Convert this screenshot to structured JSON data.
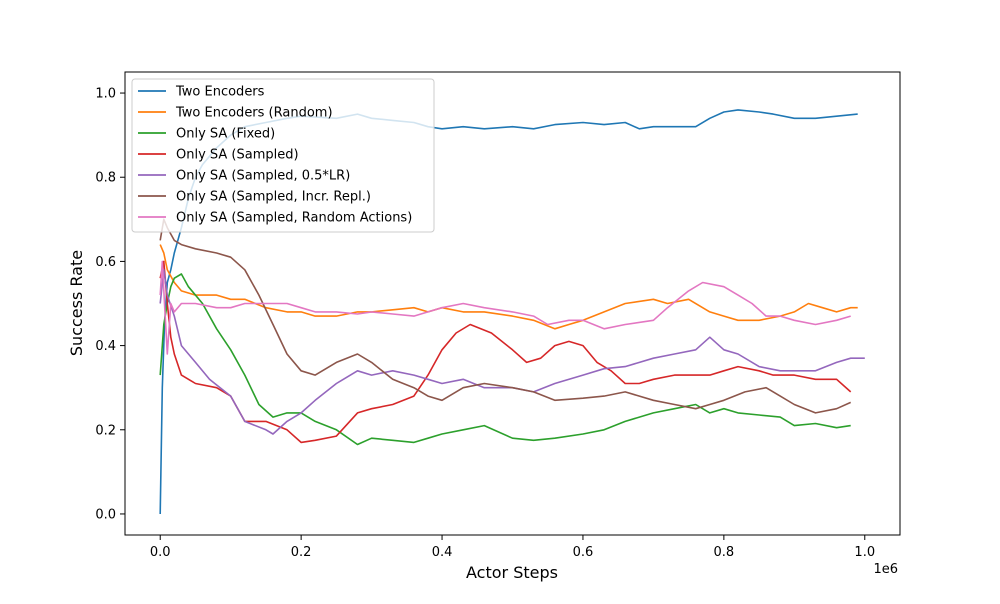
{
  "chart_data": {
    "type": "line",
    "title": "",
    "xlabel": "Actor Steps",
    "ylabel": "Success Rate",
    "x_offset_label": "1e6",
    "xlim": [
      -0.05,
      1.05
    ],
    "ylim": [
      -0.05,
      1.05
    ],
    "xticks": [
      0.0,
      0.2,
      0.4,
      0.6,
      0.8,
      1.0
    ],
    "xtick_labels": [
      "0.0",
      "0.2",
      "0.4",
      "0.6",
      "0.8",
      "1.0"
    ],
    "yticks": [
      0.0,
      0.2,
      0.4,
      0.6,
      0.8,
      1.0
    ],
    "ytick_labels": [
      "0.0",
      "0.2",
      "0.4",
      "0.6",
      "0.8",
      "1.0"
    ],
    "grid": false,
    "legend_position": "top-left",
    "series": [
      {
        "name": "Two Encoders",
        "color": "#1f77b4",
        "points": [
          [
            0.0,
            0.0
          ],
          [
            0.003,
            0.3
          ],
          [
            0.006,
            0.45
          ],
          [
            0.01,
            0.55
          ],
          [
            0.015,
            0.58
          ],
          [
            0.02,
            0.62
          ],
          [
            0.03,
            0.68
          ],
          [
            0.04,
            0.75
          ],
          [
            0.05,
            0.8
          ],
          [
            0.06,
            0.83
          ],
          [
            0.08,
            0.87
          ],
          [
            0.1,
            0.9
          ],
          [
            0.12,
            0.92
          ],
          [
            0.15,
            0.93
          ],
          [
            0.18,
            0.94
          ],
          [
            0.2,
            0.945
          ],
          [
            0.25,
            0.94
          ],
          [
            0.28,
            0.95
          ],
          [
            0.3,
            0.94
          ],
          [
            0.33,
            0.935
          ],
          [
            0.36,
            0.93
          ],
          [
            0.38,
            0.92
          ],
          [
            0.4,
            0.915
          ],
          [
            0.43,
            0.92
          ],
          [
            0.46,
            0.915
          ],
          [
            0.5,
            0.92
          ],
          [
            0.53,
            0.915
          ],
          [
            0.56,
            0.925
          ],
          [
            0.6,
            0.93
          ],
          [
            0.63,
            0.925
          ],
          [
            0.66,
            0.93
          ],
          [
            0.68,
            0.915
          ],
          [
            0.7,
            0.92
          ],
          [
            0.73,
            0.92
          ],
          [
            0.76,
            0.92
          ],
          [
            0.78,
            0.94
          ],
          [
            0.8,
            0.955
          ],
          [
            0.82,
            0.96
          ],
          [
            0.85,
            0.955
          ],
          [
            0.87,
            0.95
          ],
          [
            0.9,
            0.94
          ],
          [
            0.93,
            0.94
          ],
          [
            0.96,
            0.945
          ],
          [
            0.99,
            0.95
          ]
        ]
      },
      {
        "name": "Two Encoders (Random)",
        "color": "#ff7f0e",
        "points": [
          [
            0.0,
            0.64
          ],
          [
            0.005,
            0.62
          ],
          [
            0.01,
            0.58
          ],
          [
            0.02,
            0.55
          ],
          [
            0.03,
            0.53
          ],
          [
            0.05,
            0.52
          ],
          [
            0.08,
            0.52
          ],
          [
            0.1,
            0.51
          ],
          [
            0.12,
            0.51
          ],
          [
            0.15,
            0.49
          ],
          [
            0.18,
            0.48
          ],
          [
            0.2,
            0.48
          ],
          [
            0.22,
            0.47
          ],
          [
            0.25,
            0.47
          ],
          [
            0.28,
            0.48
          ],
          [
            0.3,
            0.48
          ],
          [
            0.33,
            0.485
          ],
          [
            0.36,
            0.49
          ],
          [
            0.38,
            0.48
          ],
          [
            0.4,
            0.49
          ],
          [
            0.43,
            0.48
          ],
          [
            0.46,
            0.48
          ],
          [
            0.5,
            0.47
          ],
          [
            0.53,
            0.46
          ],
          [
            0.56,
            0.44
          ],
          [
            0.58,
            0.45
          ],
          [
            0.6,
            0.46
          ],
          [
            0.63,
            0.48
          ],
          [
            0.66,
            0.5
          ],
          [
            0.7,
            0.51
          ],
          [
            0.72,
            0.5
          ],
          [
            0.75,
            0.51
          ],
          [
            0.78,
            0.48
          ],
          [
            0.8,
            0.47
          ],
          [
            0.82,
            0.46
          ],
          [
            0.85,
            0.46
          ],
          [
            0.88,
            0.47
          ],
          [
            0.9,
            0.48
          ],
          [
            0.92,
            0.5
          ],
          [
            0.94,
            0.49
          ],
          [
            0.96,
            0.48
          ],
          [
            0.98,
            0.49
          ],
          [
            0.99,
            0.49
          ]
        ]
      },
      {
        "name": "Only SA (Fixed)",
        "color": "#2ca02c",
        "points": [
          [
            0.0,
            0.33
          ],
          [
            0.005,
            0.45
          ],
          [
            0.01,
            0.5
          ],
          [
            0.015,
            0.54
          ],
          [
            0.02,
            0.56
          ],
          [
            0.03,
            0.57
          ],
          [
            0.04,
            0.54
          ],
          [
            0.06,
            0.5
          ],
          [
            0.08,
            0.44
          ],
          [
            0.1,
            0.39
          ],
          [
            0.12,
            0.33
          ],
          [
            0.14,
            0.26
          ],
          [
            0.16,
            0.23
          ],
          [
            0.18,
            0.24
          ],
          [
            0.2,
            0.24
          ],
          [
            0.22,
            0.22
          ],
          [
            0.25,
            0.2
          ],
          [
            0.28,
            0.165
          ],
          [
            0.3,
            0.18
          ],
          [
            0.33,
            0.175
          ],
          [
            0.36,
            0.17
          ],
          [
            0.38,
            0.18
          ],
          [
            0.4,
            0.19
          ],
          [
            0.43,
            0.2
          ],
          [
            0.46,
            0.21
          ],
          [
            0.5,
            0.18
          ],
          [
            0.53,
            0.175
          ],
          [
            0.56,
            0.18
          ],
          [
            0.6,
            0.19
          ],
          [
            0.63,
            0.2
          ],
          [
            0.66,
            0.22
          ],
          [
            0.7,
            0.24
          ],
          [
            0.73,
            0.25
          ],
          [
            0.76,
            0.26
          ],
          [
            0.78,
            0.24
          ],
          [
            0.8,
            0.25
          ],
          [
            0.82,
            0.24
          ],
          [
            0.85,
            0.235
          ],
          [
            0.88,
            0.23
          ],
          [
            0.9,
            0.21
          ],
          [
            0.93,
            0.215
          ],
          [
            0.96,
            0.205
          ],
          [
            0.98,
            0.21
          ]
        ]
      },
      {
        "name": "Only SA (Sampled)",
        "color": "#d62728",
        "points": [
          [
            0.0,
            0.56
          ],
          [
            0.005,
            0.6
          ],
          [
            0.01,
            0.5
          ],
          [
            0.015,
            0.42
          ],
          [
            0.02,
            0.38
          ],
          [
            0.03,
            0.33
          ],
          [
            0.05,
            0.31
          ],
          [
            0.08,
            0.3
          ],
          [
            0.1,
            0.28
          ],
          [
            0.12,
            0.22
          ],
          [
            0.15,
            0.22
          ],
          [
            0.18,
            0.2
          ],
          [
            0.2,
            0.17
          ],
          [
            0.22,
            0.175
          ],
          [
            0.25,
            0.185
          ],
          [
            0.28,
            0.24
          ],
          [
            0.3,
            0.25
          ],
          [
            0.33,
            0.26
          ],
          [
            0.36,
            0.28
          ],
          [
            0.38,
            0.33
          ],
          [
            0.4,
            0.39
          ],
          [
            0.42,
            0.43
          ],
          [
            0.44,
            0.45
          ],
          [
            0.47,
            0.43
          ],
          [
            0.5,
            0.39
          ],
          [
            0.52,
            0.36
          ],
          [
            0.54,
            0.37
          ],
          [
            0.56,
            0.4
          ],
          [
            0.58,
            0.41
          ],
          [
            0.6,
            0.4
          ],
          [
            0.62,
            0.36
          ],
          [
            0.64,
            0.34
          ],
          [
            0.66,
            0.31
          ],
          [
            0.68,
            0.31
          ],
          [
            0.7,
            0.32
          ],
          [
            0.73,
            0.33
          ],
          [
            0.76,
            0.33
          ],
          [
            0.78,
            0.33
          ],
          [
            0.8,
            0.34
          ],
          [
            0.82,
            0.35
          ],
          [
            0.85,
            0.34
          ],
          [
            0.87,
            0.33
          ],
          [
            0.9,
            0.33
          ],
          [
            0.93,
            0.32
          ],
          [
            0.96,
            0.32
          ],
          [
            0.98,
            0.29
          ]
        ]
      },
      {
        "name": "Only SA (Sampled, 0.5*LR)",
        "color": "#9467bd",
        "points": [
          [
            0.0,
            0.5
          ],
          [
            0.005,
            0.58
          ],
          [
            0.01,
            0.52
          ],
          [
            0.02,
            0.47
          ],
          [
            0.03,
            0.4
          ],
          [
            0.05,
            0.36
          ],
          [
            0.07,
            0.32
          ],
          [
            0.1,
            0.28
          ],
          [
            0.12,
            0.22
          ],
          [
            0.15,
            0.2
          ],
          [
            0.16,
            0.19
          ],
          [
            0.18,
            0.22
          ],
          [
            0.2,
            0.24
          ],
          [
            0.22,
            0.27
          ],
          [
            0.25,
            0.31
          ],
          [
            0.28,
            0.34
          ],
          [
            0.3,
            0.33
          ],
          [
            0.33,
            0.34
          ],
          [
            0.36,
            0.33
          ],
          [
            0.38,
            0.32
          ],
          [
            0.4,
            0.31
          ],
          [
            0.43,
            0.32
          ],
          [
            0.46,
            0.3
          ],
          [
            0.5,
            0.3
          ],
          [
            0.53,
            0.29
          ],
          [
            0.56,
            0.31
          ],
          [
            0.6,
            0.33
          ],
          [
            0.63,
            0.345
          ],
          [
            0.66,
            0.35
          ],
          [
            0.7,
            0.37
          ],
          [
            0.73,
            0.38
          ],
          [
            0.76,
            0.39
          ],
          [
            0.78,
            0.42
          ],
          [
            0.8,
            0.39
          ],
          [
            0.82,
            0.38
          ],
          [
            0.85,
            0.35
          ],
          [
            0.88,
            0.34
          ],
          [
            0.9,
            0.34
          ],
          [
            0.93,
            0.34
          ],
          [
            0.96,
            0.36
          ],
          [
            0.98,
            0.37
          ],
          [
            1.0,
            0.37
          ]
        ]
      },
      {
        "name": "Only SA (Sampled, Incr. Repl.)",
        "color": "#8c564b",
        "points": [
          [
            0.0,
            0.65
          ],
          [
            0.005,
            0.7
          ],
          [
            0.01,
            0.68
          ],
          [
            0.02,
            0.65
          ],
          [
            0.03,
            0.64
          ],
          [
            0.05,
            0.63
          ],
          [
            0.08,
            0.62
          ],
          [
            0.1,
            0.61
          ],
          [
            0.12,
            0.58
          ],
          [
            0.14,
            0.52
          ],
          [
            0.16,
            0.45
          ],
          [
            0.18,
            0.38
          ],
          [
            0.2,
            0.34
          ],
          [
            0.22,
            0.33
          ],
          [
            0.25,
            0.36
          ],
          [
            0.28,
            0.38
          ],
          [
            0.3,
            0.36
          ],
          [
            0.33,
            0.32
          ],
          [
            0.36,
            0.3
          ],
          [
            0.38,
            0.28
          ],
          [
            0.4,
            0.27
          ],
          [
            0.43,
            0.3
          ],
          [
            0.46,
            0.31
          ],
          [
            0.5,
            0.3
          ],
          [
            0.53,
            0.29
          ],
          [
            0.56,
            0.27
          ],
          [
            0.6,
            0.275
          ],
          [
            0.63,
            0.28
          ],
          [
            0.66,
            0.29
          ],
          [
            0.7,
            0.27
          ],
          [
            0.73,
            0.26
          ],
          [
            0.76,
            0.25
          ],
          [
            0.78,
            0.26
          ],
          [
            0.8,
            0.27
          ],
          [
            0.83,
            0.29
          ],
          [
            0.86,
            0.3
          ],
          [
            0.88,
            0.28
          ],
          [
            0.9,
            0.26
          ],
          [
            0.93,
            0.24
          ],
          [
            0.96,
            0.25
          ],
          [
            0.98,
            0.265
          ]
        ]
      },
      {
        "name": "Only SA (Sampled, Random Actions)",
        "color": "#e377c2",
        "points": [
          [
            0.0,
            0.52
          ],
          [
            0.003,
            0.6
          ],
          [
            0.006,
            0.5
          ],
          [
            0.01,
            0.38
          ],
          [
            0.015,
            0.5
          ],
          [
            0.02,
            0.48
          ],
          [
            0.03,
            0.5
          ],
          [
            0.05,
            0.5
          ],
          [
            0.08,
            0.49
          ],
          [
            0.1,
            0.49
          ],
          [
            0.12,
            0.5
          ],
          [
            0.15,
            0.5
          ],
          [
            0.18,
            0.5
          ],
          [
            0.2,
            0.49
          ],
          [
            0.22,
            0.48
          ],
          [
            0.25,
            0.48
          ],
          [
            0.28,
            0.475
          ],
          [
            0.3,
            0.48
          ],
          [
            0.33,
            0.475
          ],
          [
            0.36,
            0.47
          ],
          [
            0.38,
            0.48
          ],
          [
            0.4,
            0.49
          ],
          [
            0.43,
            0.5
          ],
          [
            0.46,
            0.49
          ],
          [
            0.5,
            0.48
          ],
          [
            0.53,
            0.47
          ],
          [
            0.55,
            0.45
          ],
          [
            0.58,
            0.46
          ],
          [
            0.6,
            0.46
          ],
          [
            0.63,
            0.44
          ],
          [
            0.66,
            0.45
          ],
          [
            0.7,
            0.46
          ],
          [
            0.72,
            0.49
          ],
          [
            0.75,
            0.53
          ],
          [
            0.77,
            0.55
          ],
          [
            0.8,
            0.54
          ],
          [
            0.82,
            0.52
          ],
          [
            0.84,
            0.5
          ],
          [
            0.86,
            0.47
          ],
          [
            0.88,
            0.47
          ],
          [
            0.9,
            0.46
          ],
          [
            0.93,
            0.45
          ],
          [
            0.96,
            0.46
          ],
          [
            0.98,
            0.47
          ]
        ]
      }
    ]
  }
}
